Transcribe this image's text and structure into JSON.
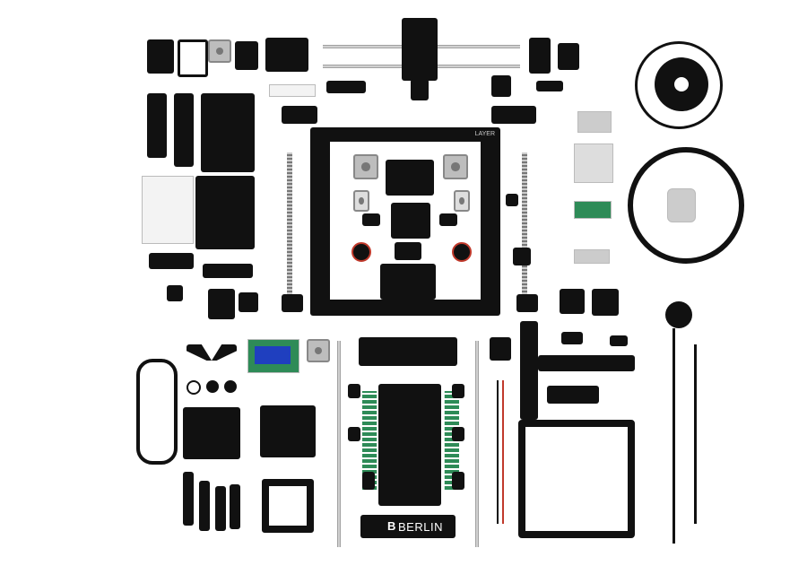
{
  "photo": {
    "background": "#ffffff",
    "part_color": "#111111",
    "metal_color": "#bdbdbd",
    "wire_red": "#c0392b",
    "wire_green": "#2e8b57",
    "lcd_blue": "#1f3fbf"
  },
  "bed_plate": {
    "logo_text": "BERLIN",
    "logo_mark": "B"
  },
  "frame": {
    "badge_text": "LAYER"
  }
}
